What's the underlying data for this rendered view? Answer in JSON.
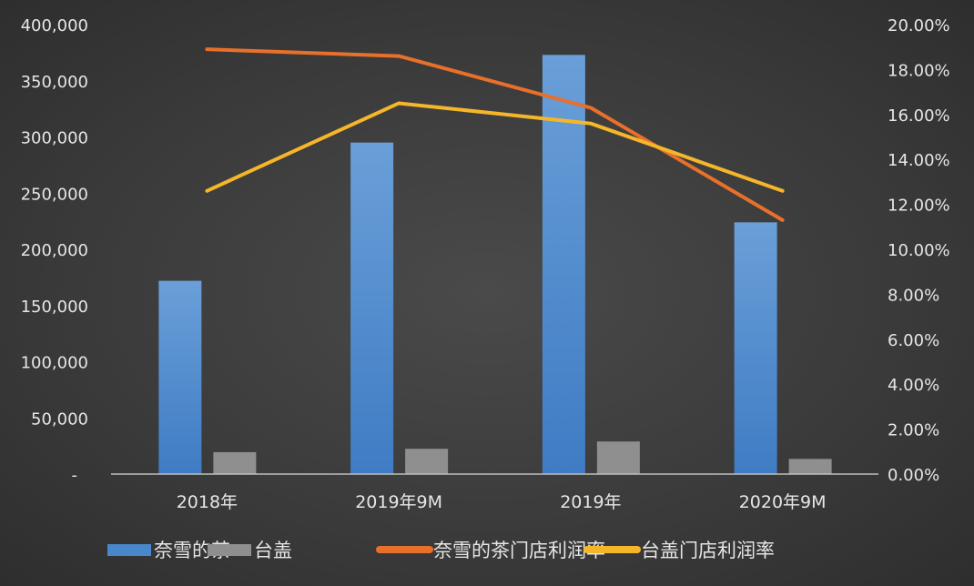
{
  "chart_data": {
    "type": "bar+line",
    "categories": [
      "2018年",
      "2019年9M",
      "2019年",
      "2020年9M"
    ],
    "series": [
      {
        "name": "奈雪的茶",
        "type": "bar",
        "axis": "left",
        "color": "#4a86cc",
        "values": [
          172000,
          295000,
          373000,
          224000
        ]
      },
      {
        "name": "台盖",
        "type": "bar",
        "axis": "left",
        "color": "#8f8f8f",
        "values": [
          19500,
          22500,
          29000,
          13500
        ]
      },
      {
        "name": "奈雪的茶门店利润率",
        "type": "line",
        "axis": "right",
        "color": "#e8702a",
        "values": [
          18.9,
          18.6,
          16.3,
          11.3
        ]
      },
      {
        "name": "台盖门店利润率",
        "type": "line",
        "axis": "right",
        "color": "#f6b62a",
        "values": [
          12.6,
          16.5,
          15.6,
          12.6
        ]
      }
    ],
    "y_left": {
      "range": [
        0,
        400000
      ],
      "ticks": [
        "-",
        "50,000",
        "100,000",
        "150,000",
        "200,000",
        "250,000",
        "300,000",
        "350,000",
        "400,000"
      ]
    },
    "y_right": {
      "range": [
        0,
        20
      ],
      "ticks": [
        "0.00%",
        "2.00%",
        "4.00%",
        "6.00%",
        "8.00%",
        "10.00%",
        "12.00%",
        "14.00%",
        "16.00%",
        "18.00%",
        "20.00%"
      ]
    },
    "grid": false,
    "legend": "bottom"
  }
}
